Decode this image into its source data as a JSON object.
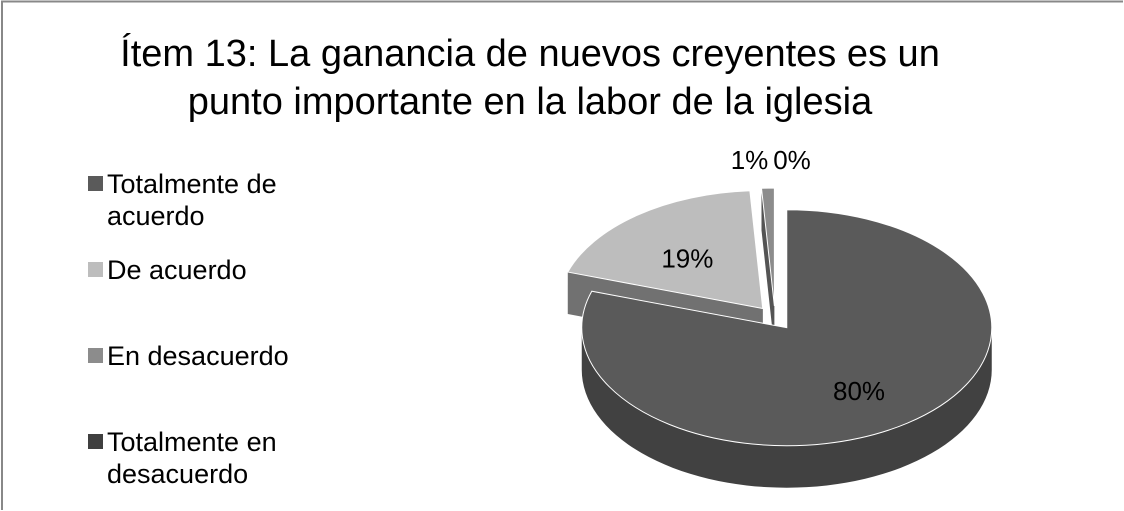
{
  "chart_data": {
    "type": "pie",
    "title": "Ítem 13: La ganancia de nuevos creyentes es un punto importante en la labor de la iglesia",
    "categories": [
      "Totalmente de acuerdo",
      "De acuerdo",
      "En desacuerdo",
      "Totalmente en desacuerdo"
    ],
    "values": [
      80,
      19,
      1,
      0
    ],
    "value_labels": [
      "80%",
      "19%",
      "1%",
      "0%"
    ],
    "colors": [
      "#5a5a5a",
      "#bdbdbd",
      "#8c8c8c",
      "#3f3f3f"
    ],
    "legend": "left"
  }
}
